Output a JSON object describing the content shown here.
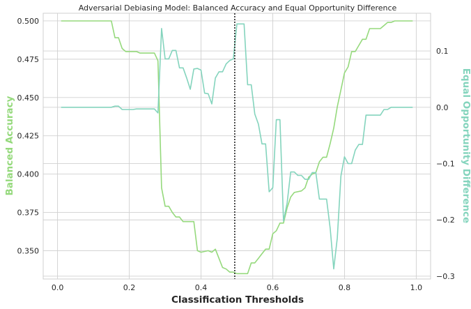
{
  "chart_data": {
    "type": "line",
    "title": "Adversarial Debiasing Model: Balanced Accuracy and Equal Opportunity Difference",
    "xlabel": "Classification Thresholds",
    "ylabel_left": "Balanced Accuracy",
    "ylabel_right": "Equal Opportunity Difference",
    "xlim": [
      -0.04,
      1.04
    ],
    "ylim_left": [
      0.3315,
      0.505
    ],
    "ylim_right": [
      -0.305,
      0.167
    ],
    "x_ticks": [
      0.0,
      0.2,
      0.4,
      0.6,
      0.8,
      1.0
    ],
    "x_tick_labels": [
      "0.0",
      "0.2",
      "0.4",
      "0.6",
      "0.8",
      "1.0"
    ],
    "y_left_ticks": [
      0.35,
      0.375,
      0.4,
      0.425,
      0.45,
      0.475,
      0.5
    ],
    "y_left_tick_labels": [
      "0.350",
      "0.375",
      "0.400",
      "0.425",
      "0.450",
      "0.475",
      "0.500"
    ],
    "y_right_ticks": [
      -0.3,
      -0.2,
      -0.1,
      0.0,
      0.1
    ],
    "y_right_tick_labels": [
      "−0.3",
      "−0.2",
      "−0.1",
      "0.0",
      "0.1"
    ],
    "grid": true,
    "vline_x": 0.494,
    "colors": {
      "balanced_accuracy": "#95d97c",
      "equal_opportunity": "#84d4bd",
      "vline": "#222222"
    },
    "series": [
      {
        "axis": "left",
        "points": [
          [
            0.01,
            0.5
          ],
          [
            0.15,
            0.5
          ],
          [
            0.16,
            0.489
          ],
          [
            0.17,
            0.489
          ],
          [
            0.18,
            0.482
          ],
          [
            0.19,
            0.48
          ],
          [
            0.22,
            0.48
          ],
          [
            0.23,
            0.479
          ],
          [
            0.27,
            0.479
          ],
          [
            0.28,
            0.474
          ],
          [
            0.29,
            0.391
          ],
          [
            0.3,
            0.379
          ],
          [
            0.31,
            0.379
          ],
          [
            0.32,
            0.375
          ],
          [
            0.33,
            0.372
          ],
          [
            0.34,
            0.372
          ],
          [
            0.35,
            0.369
          ],
          [
            0.38,
            0.369
          ],
          [
            0.39,
            0.35
          ],
          [
            0.4,
            0.349
          ],
          [
            0.42,
            0.35
          ],
          [
            0.43,
            0.349
          ],
          [
            0.44,
            0.351
          ],
          [
            0.45,
            0.345
          ],
          [
            0.46,
            0.339
          ],
          [
            0.47,
            0.338
          ],
          [
            0.48,
            0.336
          ],
          [
            0.49,
            0.336
          ],
          [
            0.5,
            0.335
          ],
          [
            0.53,
            0.335
          ],
          [
            0.54,
            0.342
          ],
          [
            0.55,
            0.342
          ],
          [
            0.56,
            0.345
          ],
          [
            0.57,
            0.348
          ],
          [
            0.58,
            0.351
          ],
          [
            0.59,
            0.351
          ],
          [
            0.6,
            0.361
          ],
          [
            0.61,
            0.363
          ],
          [
            0.62,
            0.368
          ],
          [
            0.63,
            0.368
          ],
          [
            0.64,
            0.378
          ],
          [
            0.65,
            0.385
          ],
          [
            0.66,
            0.388
          ],
          [
            0.68,
            0.389
          ],
          [
            0.69,
            0.391
          ],
          [
            0.7,
            0.398
          ],
          [
            0.71,
            0.4
          ],
          [
            0.72,
            0.401
          ],
          [
            0.73,
            0.408
          ],
          [
            0.74,
            0.411
          ],
          [
            0.75,
            0.411
          ],
          [
            0.76,
            0.42
          ],
          [
            0.77,
            0.43
          ],
          [
            0.78,
            0.444
          ],
          [
            0.79,
            0.455
          ],
          [
            0.8,
            0.466
          ],
          [
            0.81,
            0.47
          ],
          [
            0.82,
            0.48
          ],
          [
            0.83,
            0.48
          ],
          [
            0.84,
            0.484
          ],
          [
            0.85,
            0.488
          ],
          [
            0.86,
            0.488
          ],
          [
            0.87,
            0.495
          ],
          [
            0.9,
            0.495
          ],
          [
            0.91,
            0.497
          ],
          [
            0.92,
            0.499
          ],
          [
            0.93,
            0.499
          ],
          [
            0.94,
            0.5
          ],
          [
            0.99,
            0.5
          ]
        ]
      },
      {
        "axis": "right",
        "points": [
          [
            0.01,
            0.0
          ],
          [
            0.15,
            0.0
          ],
          [
            0.16,
            0.002
          ],
          [
            0.17,
            0.002
          ],
          [
            0.18,
            -0.004
          ],
          [
            0.21,
            -0.004
          ],
          [
            0.22,
            -0.003
          ],
          [
            0.27,
            -0.003
          ],
          [
            0.28,
            -0.01
          ],
          [
            0.29,
            0.14
          ],
          [
            0.3,
            0.086
          ],
          [
            0.31,
            0.086
          ],
          [
            0.32,
            0.101
          ],
          [
            0.33,
            0.101
          ],
          [
            0.34,
            0.07
          ],
          [
            0.35,
            0.07
          ],
          [
            0.36,
            0.052
          ],
          [
            0.37,
            0.032
          ],
          [
            0.38,
            0.068
          ],
          [
            0.39,
            0.069
          ],
          [
            0.4,
            0.066
          ],
          [
            0.41,
            0.025
          ],
          [
            0.42,
            0.024
          ],
          [
            0.43,
            0.006
          ],
          [
            0.44,
            0.052
          ],
          [
            0.45,
            0.063
          ],
          [
            0.46,
            0.063
          ],
          [
            0.47,
            0.077
          ],
          [
            0.48,
            0.083
          ],
          [
            0.49,
            0.086
          ],
          [
            0.5,
            0.148
          ],
          [
            0.52,
            0.148
          ],
          [
            0.53,
            0.04
          ],
          [
            0.54,
            0.04
          ],
          [
            0.55,
            -0.012
          ],
          [
            0.56,
            -0.03
          ],
          [
            0.57,
            -0.065
          ],
          [
            0.58,
            -0.065
          ],
          [
            0.59,
            -0.15
          ],
          [
            0.6,
            -0.143
          ],
          [
            0.61,
            -0.022
          ],
          [
            0.62,
            -0.022
          ],
          [
            0.63,
            -0.202
          ],
          [
            0.64,
            -0.17
          ],
          [
            0.65,
            -0.115
          ],
          [
            0.66,
            -0.115
          ],
          [
            0.67,
            -0.121
          ],
          [
            0.68,
            -0.121
          ],
          [
            0.69,
            -0.128
          ],
          [
            0.7,
            -0.128
          ],
          [
            0.71,
            -0.116
          ],
          [
            0.72,
            -0.116
          ],
          [
            0.73,
            -0.163
          ],
          [
            0.75,
            -0.163
          ],
          [
            0.76,
            -0.215
          ],
          [
            0.77,
            -0.287
          ],
          [
            0.78,
            -0.232
          ],
          [
            0.79,
            -0.122
          ],
          [
            0.8,
            -0.088
          ],
          [
            0.81,
            -0.1
          ],
          [
            0.82,
            -0.1
          ],
          [
            0.83,
            -0.076
          ],
          [
            0.84,
            -0.066
          ],
          [
            0.85,
            -0.066
          ],
          [
            0.86,
            -0.014
          ],
          [
            0.87,
            -0.014
          ],
          [
            0.88,
            -0.014
          ],
          [
            0.89,
            -0.014
          ],
          [
            0.9,
            -0.014
          ],
          [
            0.91,
            -0.004
          ],
          [
            0.92,
            -0.004
          ],
          [
            0.93,
            0.0
          ],
          [
            0.99,
            0.0
          ]
        ]
      }
    ]
  }
}
